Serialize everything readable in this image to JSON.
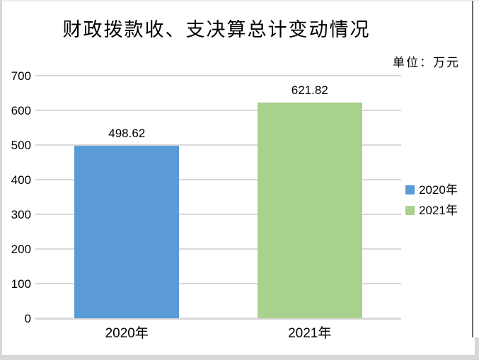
{
  "title": "财政拨款收、支决算总计变动情况",
  "unit_label": "单位：万元",
  "chart_data": {
    "type": "bar",
    "title": "财政拨款收、支决算总计变动情况",
    "unit": "单位：万元",
    "categories": [
      "2020年",
      "2021年"
    ],
    "values": [
      498.62,
      621.82
    ],
    "value_labels": [
      "498.62",
      "621.82"
    ],
    "bar_colors": [
      "#5B9BD5",
      "#A9D18E"
    ],
    "ylim": [
      0,
      700
    ],
    "ytick_step": 100,
    "ytick_labels": [
      "0",
      "100",
      "200",
      "300",
      "400",
      "500",
      "600",
      "700"
    ],
    "grid": true,
    "legend": {
      "position": "right",
      "entries": [
        {
          "label": "2020年",
          "color": "#5B9BD5"
        },
        {
          "label": "2021年",
          "color": "#A9D18E"
        }
      ]
    },
    "colors": {
      "gridline": "#D9D9D9",
      "axis_line": "#D9D9D9",
      "text": "#000000",
      "background": "#FFFFFF"
    }
  }
}
